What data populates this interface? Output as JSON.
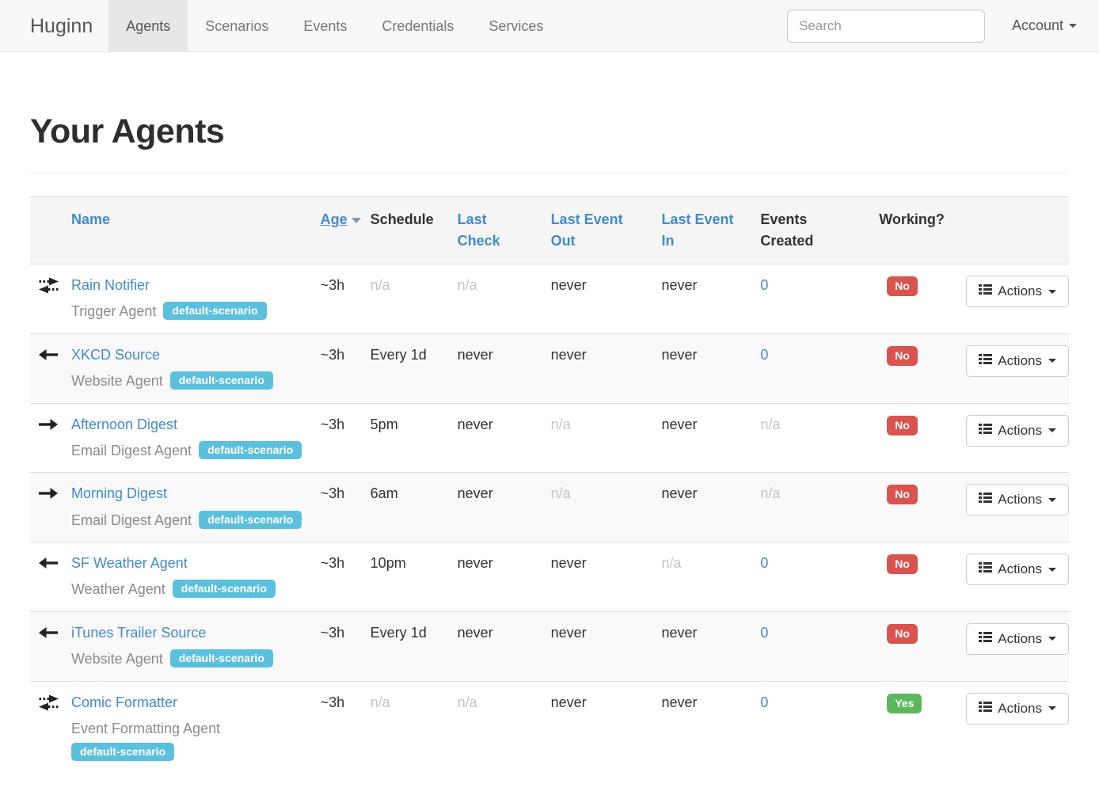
{
  "navbar": {
    "brand": "Huginn",
    "items": [
      {
        "label": "Agents",
        "active": true
      },
      {
        "label": "Scenarios",
        "active": false
      },
      {
        "label": "Events",
        "active": false
      },
      {
        "label": "Credentials",
        "active": false
      },
      {
        "label": "Services",
        "active": false
      }
    ],
    "search_placeholder": "Search",
    "account_label": "Account"
  },
  "page": {
    "title": "Your Agents"
  },
  "table": {
    "headers": {
      "name": "Name",
      "age": "Age",
      "schedule": "Schedule",
      "last_check": "Last Check",
      "last_event_out": "Last Event Out",
      "last_event_in": "Last Event In",
      "events_created": "Events Created",
      "working": "Working?"
    },
    "actions_label": "Actions",
    "rows": [
      {
        "icon": "bidirectional-arrow",
        "name": "Rain Notifier",
        "type": "Trigger Agent",
        "scenario": "default-scenario",
        "age": "~3h",
        "schedule": "n/a",
        "last_check": "n/a",
        "last_event_out": "never",
        "last_event_in": "never",
        "events_created": "0",
        "working": "No"
      },
      {
        "icon": "left-arrow",
        "name": "XKCD Source",
        "type": "Website Agent",
        "scenario": "default-scenario",
        "age": "~3h",
        "schedule": "Every 1d",
        "last_check": "never",
        "last_event_out": "never",
        "last_event_in": "never",
        "events_created": "0",
        "working": "No"
      },
      {
        "icon": "right-arrow",
        "name": "Afternoon Digest",
        "type": "Email Digest Agent",
        "scenario": "default-scenario",
        "age": "~3h",
        "schedule": "5pm",
        "last_check": "never",
        "last_event_out": "n/a",
        "last_event_in": "never",
        "events_created": "n/a",
        "working": "No"
      },
      {
        "icon": "right-arrow",
        "name": "Morning Digest",
        "type": "Email Digest Agent",
        "scenario": "default-scenario",
        "age": "~3h",
        "schedule": "6am",
        "last_check": "never",
        "last_event_out": "n/a",
        "last_event_in": "never",
        "events_created": "n/a",
        "working": "No"
      },
      {
        "icon": "left-arrow",
        "name": "SF Weather Agent",
        "type": "Weather Agent",
        "scenario": "default-scenario",
        "age": "~3h",
        "schedule": "10pm",
        "last_check": "never",
        "last_event_out": "never",
        "last_event_in": "n/a",
        "events_created": "0",
        "working": "No"
      },
      {
        "icon": "left-arrow",
        "name": "iTunes Trailer Source",
        "type": "Website Agent",
        "scenario": "default-scenario",
        "age": "~3h",
        "schedule": "Every 1d",
        "last_check": "never",
        "last_event_out": "never",
        "last_event_in": "never",
        "events_created": "0",
        "working": "No"
      },
      {
        "icon": "bidirectional-arrow",
        "name": "Comic Formatter",
        "type": "Event Formatting Agent",
        "scenario": "default-scenario",
        "age": "~3h",
        "schedule": "n/a",
        "last_check": "n/a",
        "last_event_out": "never",
        "last_event_in": "never",
        "events_created": "0",
        "working": "Yes"
      }
    ]
  },
  "colors": {
    "link_blue": "#428bca",
    "badge_info": "#5bc0de",
    "label_danger": "#d9534f",
    "label_success": "#5cb85c"
  }
}
